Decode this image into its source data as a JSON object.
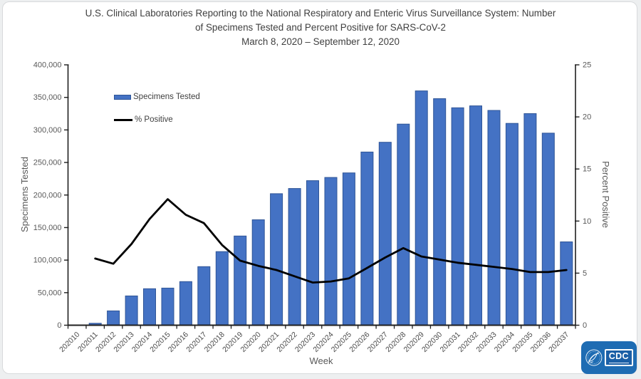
{
  "page": {
    "background": "#edeff0",
    "card_background": "#ffffff"
  },
  "header": {
    "title": "U.S. Clinical Laboratories Reporting to the National Respiratory and Enteric Virus Surveillance System: Number of Specimens Tested and Percent Positive for SARS-CoV-2",
    "date_range": "March 8, 2020 – September 12, 2020"
  },
  "legend": {
    "items": [
      {
        "label": "Specimens Tested",
        "type": "bar",
        "color": "#4472C4"
      },
      {
        "label": "% Positive",
        "type": "line",
        "color": "#000000"
      }
    ]
  },
  "chart_data": {
    "type": "bar",
    "subtype": "bar+line-dual-axis",
    "categories": [
      "202010",
      "202011",
      "202012",
      "202013",
      "202014",
      "202015",
      "202016",
      "202017",
      "202018",
      "202019",
      "202020",
      "202021",
      "202022",
      "202023",
      "202024",
      "202025",
      "202026",
      "202027",
      "202028",
      "202029",
      "202030",
      "202031",
      "202032",
      "202033",
      "202034",
      "202035",
      "202036",
      "202037"
    ],
    "series": [
      {
        "name": "Specimens Tested",
        "type": "bar",
        "axis": "left",
        "color": "#4472C4",
        "border_color": "#2F5597",
        "values": [
          0,
          3000,
          22000,
          45000,
          56000,
          57000,
          67000,
          90000,
          113000,
          137000,
          162000,
          202000,
          210000,
          222000,
          227000,
          234000,
          266000,
          281000,
          309000,
          360000,
          348000,
          334000,
          337000,
          330000,
          310000,
          325000,
          295000,
          128000
        ]
      },
      {
        "name": "% Positive",
        "type": "line",
        "axis": "right",
        "color": "#000000",
        "values": [
          null,
          6.4,
          5.9,
          7.8,
          10.2,
          12.1,
          10.6,
          9.8,
          7.7,
          6.2,
          5.7,
          5.3,
          4.7,
          4.1,
          4.2,
          4.5,
          5.5,
          6.5,
          7.4,
          6.6,
          6.3,
          6.0,
          5.8,
          5.6,
          5.4,
          5.1,
          5.1,
          5.3
        ]
      }
    ],
    "left_axis": {
      "label": "Specimens Tested",
      "min": 0,
      "max": 400000,
      "tick_step": 50000
    },
    "right_axis": {
      "label": "Percent Positive",
      "min": 0,
      "max": 25,
      "tick_step": 5
    },
    "x_axis": {
      "label": "Week"
    },
    "grid": false,
    "legend_position": "upper-left-inside"
  },
  "logo": {
    "name": "CDC / HHS logo",
    "cdc_text": "CDC",
    "color": "#1E6CB3"
  }
}
